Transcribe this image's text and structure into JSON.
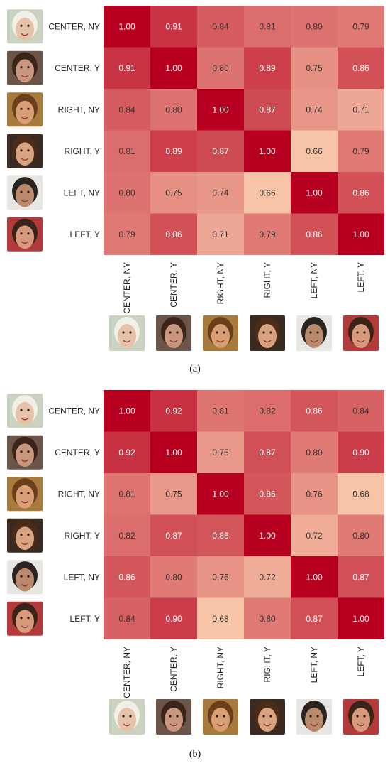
{
  "chart_data": [
    {
      "type": "heatmap",
      "caption": "(a)",
      "rows": [
        "CENTER, NY",
        "CENTER, Y",
        "RIGHT, NY",
        "RIGHT, Y",
        "LEFT, NY",
        "LEFT, Y"
      ],
      "columns": [
        "CENTER, NY",
        "CENTER, Y",
        "RIGHT, NY",
        "RIGHT, Y",
        "LEFT, NY",
        "LEFT, Y"
      ],
      "values": [
        [
          1.0,
          0.91,
          0.84,
          0.81,
          0.8,
          0.79
        ],
        [
          0.91,
          1.0,
          0.8,
          0.89,
          0.75,
          0.86
        ],
        [
          0.84,
          0.8,
          1.0,
          0.87,
          0.74,
          0.71
        ],
        [
          0.81,
          0.89,
          0.87,
          1.0,
          0.66,
          0.79
        ],
        [
          0.8,
          0.75,
          0.74,
          0.66,
          1.0,
          0.86
        ],
        [
          0.79,
          0.86,
          0.71,
          0.79,
          0.86,
          1.0
        ]
      ],
      "color_scale": {
        "low": "#f7c4a8",
        "high": "#b7001f"
      }
    },
    {
      "type": "heatmap",
      "caption": "(b)",
      "rows": [
        "CENTER, NY",
        "CENTER, Y",
        "RIGHT, NY",
        "RIGHT, Y",
        "LEFT, NY",
        "LEFT, Y"
      ],
      "columns": [
        "CENTER, NY",
        "CENTER, Y",
        "RIGHT, NY",
        "RIGHT, Y",
        "LEFT, NY",
        "LEFT, Y"
      ],
      "values": [
        [
          1.0,
          0.92,
          0.81,
          0.82,
          0.86,
          0.84
        ],
        [
          0.92,
          1.0,
          0.75,
          0.87,
          0.8,
          0.9
        ],
        [
          0.81,
          0.75,
          1.0,
          0.86,
          0.76,
          0.68
        ],
        [
          0.82,
          0.87,
          0.86,
          1.0,
          0.72,
          0.8
        ],
        [
          0.86,
          0.8,
          0.76,
          0.72,
          1.0,
          0.87
        ],
        [
          0.84,
          0.9,
          0.68,
          0.8,
          0.87,
          1.0
        ]
      ],
      "color_scale": {
        "low": "#f7c4a8",
        "high": "#b7001f"
      }
    }
  ],
  "faces": [
    {
      "label": "CENTER, NY",
      "icon": "smiling-older-woman-face-icon",
      "skin": "#e6c3a8",
      "hair": "#f2efe8",
      "bg": "#c9d3c0"
    },
    {
      "label": "CENTER, Y",
      "icon": "young-woman-face-icon",
      "skin": "#c9977e",
      "hair": "#3b2418",
      "bg": "#6b5448"
    },
    {
      "label": "RIGHT, NY",
      "icon": "smiling-woman-face-icon",
      "skin": "#d99f74",
      "hair": "#6a3f1c",
      "bg": "#a87a3c"
    },
    {
      "label": "RIGHT, Y",
      "icon": "young-man-face-icon",
      "skin": "#d8a37e",
      "hair": "#4a2c18",
      "bg": "#3a2a20"
    },
    {
      "label": "LEFT, NY",
      "icon": "smiling-man-face-icon",
      "skin": "#b98a6c",
      "hair": "#2a2420",
      "bg": "#e8e6e2"
    },
    {
      "label": "LEFT, Y",
      "icon": "grinning-man-face-icon",
      "skin": "#d79a7c",
      "hair": "#3a2418",
      "bg": "#b33a3a"
    }
  ]
}
